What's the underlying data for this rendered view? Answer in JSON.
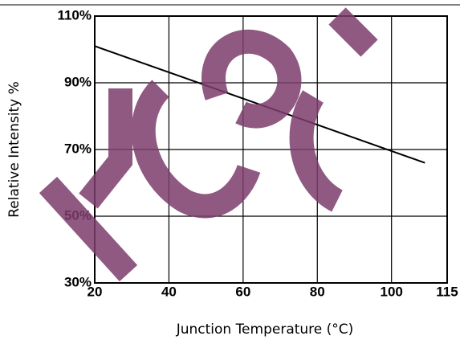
{
  "chart_data": {
    "type": "line",
    "x_label": "Junction Temperature (°C)",
    "y_label": "Relative Intensity %",
    "x": [
      20,
      109
    ],
    "series": [
      {
        "name": null,
        "color": "#000000",
        "values": [
          101,
          66
        ]
      }
    ],
    "xlim": [
      20,
      115
    ],
    "xticks": [
      20,
      40,
      60,
      80,
      100,
      115
    ],
    "ylim": [
      30,
      110
    ],
    "yticks": [
      {
        "value": 30,
        "label": "30%"
      },
      {
        "value": 50,
        "label": "50%"
      },
      {
        "value": 70,
        "label": "70%"
      },
      {
        "value": 90,
        "label": "90%"
      },
      {
        "value": 110,
        "label": "110%"
      }
    ],
    "grid": true
  }
}
